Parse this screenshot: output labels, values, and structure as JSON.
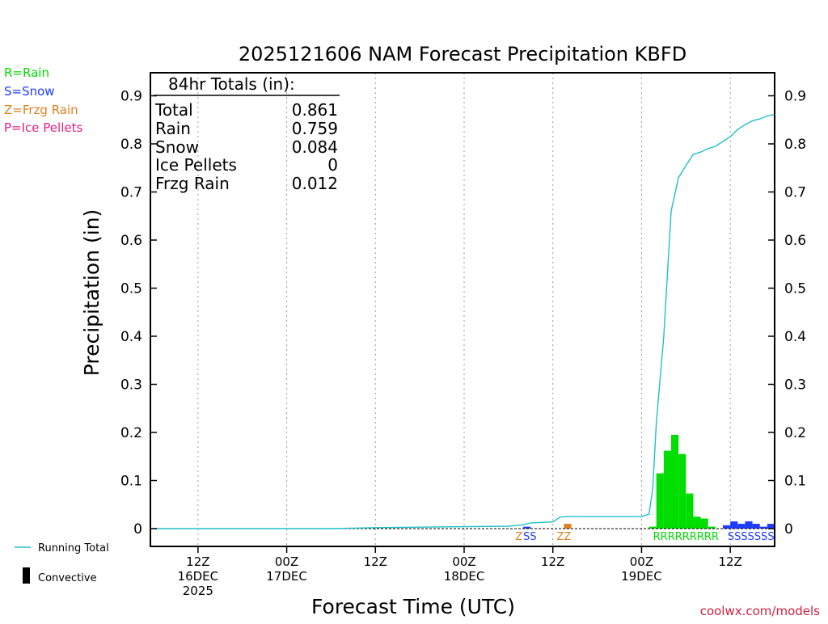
{
  "colors": {
    "rain": "#00dd00",
    "snow": "#1e3cff",
    "frzg": "#e08020",
    "ice": "#e0208a",
    "running": "#20c0c8",
    "convective": "#000000",
    "frame": "#000000",
    "grid": "#9a9a9a",
    "credit": "#d02040"
  },
  "legend_left": {
    "rain": "R=Rain",
    "snow": "S=Snow",
    "frzg": "Z=Frzg Rain",
    "ice": "P=Ice Pellets"
  },
  "legend_bottom": {
    "running_total": "Running Total",
    "convective": "Convective"
  },
  "totals": {
    "heading": "84hr Totals (in):",
    "rows": [
      {
        "label": "Total",
        "value": "0.861"
      },
      {
        "label": "Rain",
        "value": "0.759"
      },
      {
        "label": "Snow",
        "value": "0.084"
      },
      {
        "label": "Ice Pellets",
        "value": "0"
      },
      {
        "label": "Frzg Rain",
        "value": "0.012"
      }
    ]
  },
  "credit": "coolwx.com/models",
  "chart_data": {
    "type": "bar",
    "title": "2025121606 NAM Forecast Precipitation KBFD",
    "xlabel": "Forecast Time (UTC)",
    "ylabel": "Precipitation (in)",
    "ylim": [
      0,
      0.95
    ],
    "xlim_hours": [
      0,
      84
    ],
    "yticks": [
      0,
      0.1,
      0.2,
      0.3,
      0.4,
      0.5,
      0.6,
      0.7,
      0.8,
      0.9
    ],
    "ytick_labels": [
      "0",
      "0.1",
      "0.2",
      "0.3",
      "0.4",
      "0.5",
      "0.6",
      "0.7",
      "0.8",
      "0.9"
    ],
    "xticks": [
      {
        "hour": 6,
        "lines": [
          "12Z",
          "16DEC",
          "2025"
        ]
      },
      {
        "hour": 18,
        "lines": [
          "00Z",
          "17DEC"
        ]
      },
      {
        "hour": 30,
        "lines": [
          "12Z"
        ]
      },
      {
        "hour": 42,
        "lines": [
          "00Z",
          "18DEC"
        ]
      },
      {
        "hour": 54,
        "lines": [
          "12Z"
        ]
      },
      {
        "hour": 66,
        "lines": [
          "00Z",
          "19DEC"
        ]
      },
      {
        "hour": 78,
        "lines": [
          "12Z"
        ]
      }
    ],
    "bar_width_hours": 1,
    "series": [
      {
        "name": "Rain",
        "type_key": "rain",
        "bars": [
          {
            "hour": 68.5,
            "value": 0.115
          },
          {
            "hour": 69.5,
            "value": 0.162
          },
          {
            "hour": 70.5,
            "value": 0.195
          },
          {
            "hour": 71.5,
            "value": 0.155
          },
          {
            "hour": 72.5,
            "value": 0.073
          },
          {
            "hour": 73.5,
            "value": 0.025
          },
          {
            "hour": 74.5,
            "value": 0.021
          },
          {
            "hour": 75.5,
            "value": 0.004
          },
          {
            "hour": 67.5,
            "value": 0.004
          }
        ]
      },
      {
        "name": "Snow",
        "type_key": "snow",
        "bars": [
          {
            "hour": 50.5,
            "value": 0.004
          },
          {
            "hour": 77.5,
            "value": 0.007
          },
          {
            "hour": 78.5,
            "value": 0.015
          },
          {
            "hour": 79.5,
            "value": 0.01
          },
          {
            "hour": 80.5,
            "value": 0.015
          },
          {
            "hour": 81.5,
            "value": 0.01
          },
          {
            "hour": 82.5,
            "value": 0.004
          },
          {
            "hour": 83.5,
            "value": 0.01
          }
        ]
      },
      {
        "name": "Frzg Rain",
        "type_key": "frzg",
        "bars": [
          {
            "hour": 56,
            "value": 0.01
          }
        ]
      }
    ],
    "running_total": {
      "name": "Running Total",
      "hours": [
        0,
        24,
        27,
        30,
        36,
        42,
        48,
        50,
        51,
        54,
        55,
        56,
        60,
        64,
        66,
        67,
        67.5,
        68,
        69,
        70,
        71,
        72,
        73,
        74,
        75,
        76,
        77,
        78,
        79,
        80,
        81,
        82,
        83,
        84
      ],
      "values": [
        0,
        0,
        0.001,
        0.002,
        0.003,
        0.004,
        0.005,
        0.008,
        0.012,
        0.014,
        0.024,
        0.025,
        0.025,
        0.025,
        0.025,
        0.03,
        0.08,
        0.22,
        0.4,
        0.66,
        0.73,
        0.755,
        0.778,
        0.783,
        0.79,
        0.795,
        0.805,
        0.815,
        0.83,
        0.84,
        0.848,
        0.852,
        0.858,
        0.861
      ]
    },
    "type_codes": [
      {
        "text": "Z",
        "color_key": "frzg",
        "hour": 49.4
      },
      {
        "text": "SS",
        "color_key": "snow",
        "hour": 50.9
      },
      {
        "text": "ZZ",
        "color_key": "frzg",
        "hour": 55.5
      },
      {
        "text": "RRRRRRRRR",
        "color_key": "rain",
        "hour": 72.0
      },
      {
        "text": "SSSSSSS",
        "color_key": "snow",
        "hour": 80.8
      }
    ]
  }
}
